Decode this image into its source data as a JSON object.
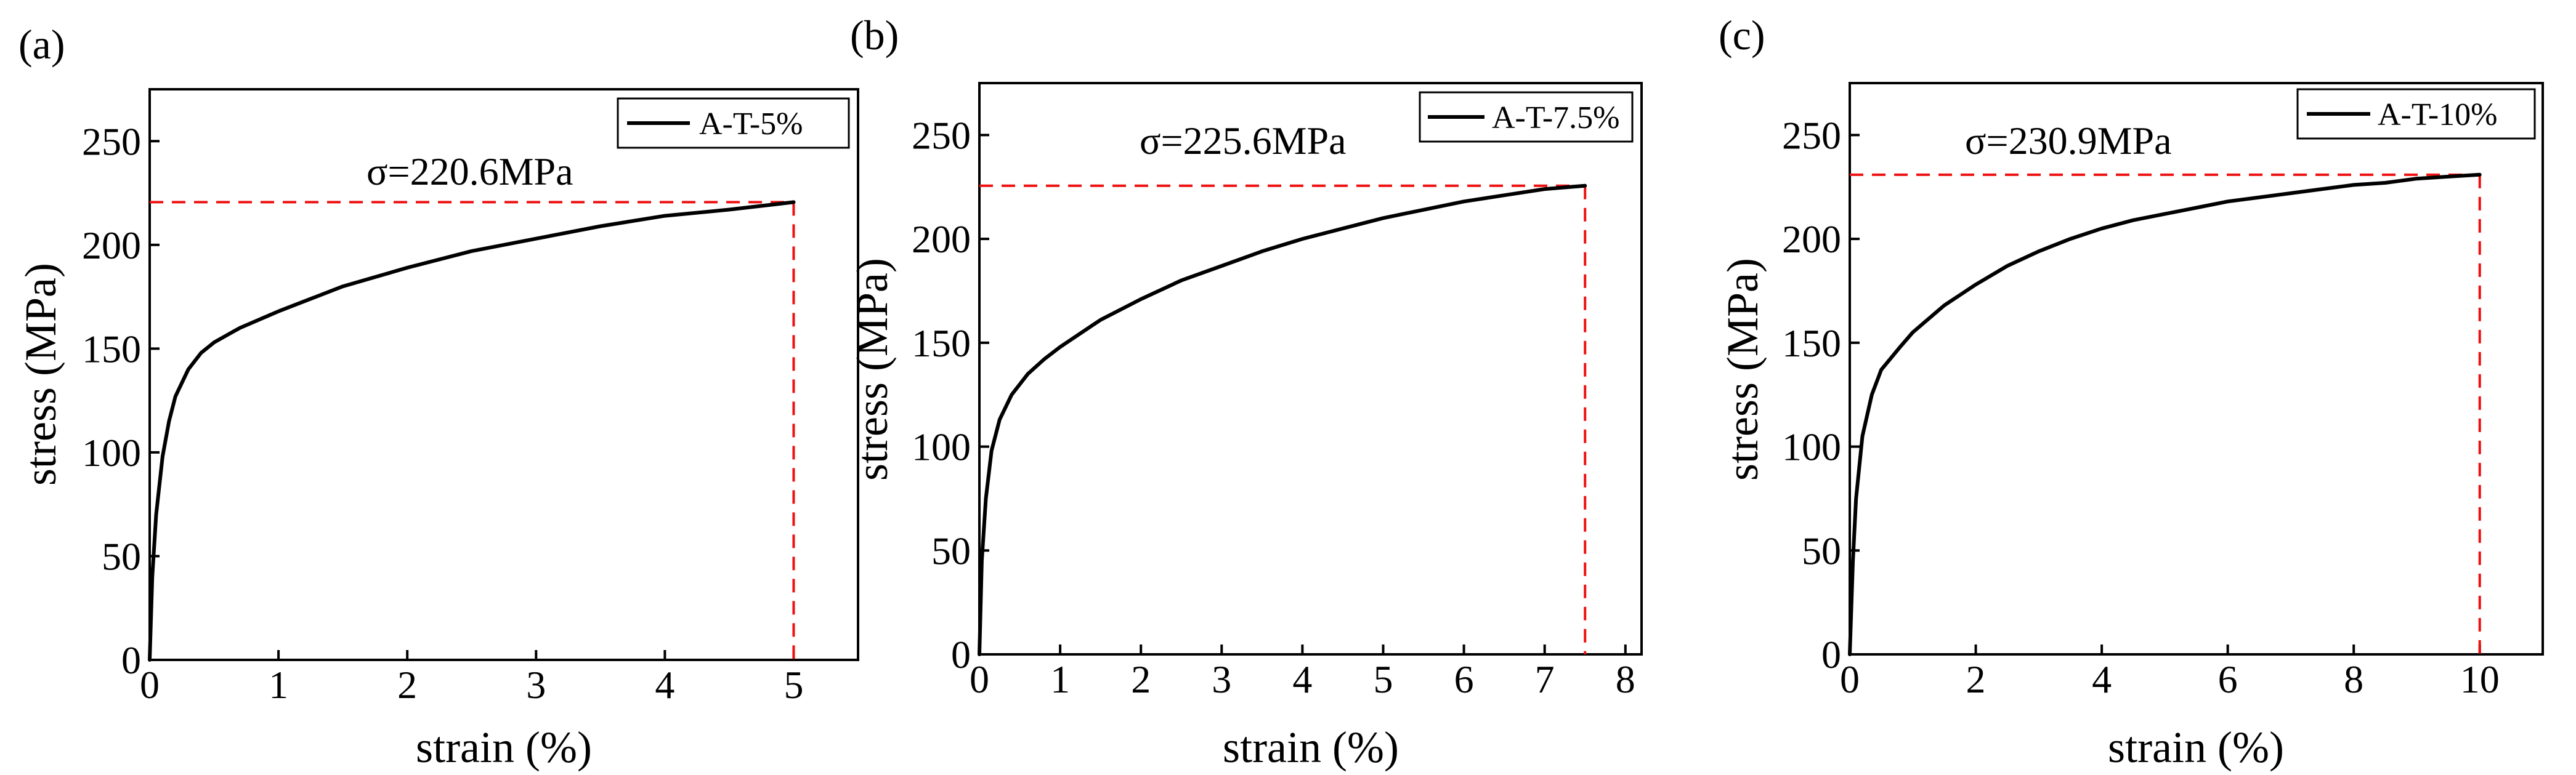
{
  "chart_data": [
    {
      "type": "line",
      "panel_label": "(a)",
      "xlabel": "strain (%)",
      "ylabel": "stress (MPa)",
      "xlim": [
        0,
        5.5
      ],
      "ylim": [
        0,
        275
      ],
      "xticks": [
        0,
        1,
        2,
        3,
        4,
        5
      ],
      "yticks": [
        0,
        50,
        100,
        150,
        200,
        250
      ],
      "grid": false,
      "legend_position": "top-right",
      "series": [
        {
          "name": "A-T-5%",
          "color": "#000000",
          "x": [
            0,
            0.02,
            0.05,
            0.1,
            0.15,
            0.2,
            0.3,
            0.4,
            0.5,
            0.7,
            1.0,
            1.5,
            2.0,
            2.5,
            3.0,
            3.5,
            4.0,
            4.5,
            5.0
          ],
          "y": [
            0,
            40,
            70,
            98,
            115,
            127,
            140,
            148,
            153,
            160,
            168,
            180,
            189,
            197,
            203,
            209,
            214,
            217,
            220.6
          ]
        }
      ],
      "reference_lines": {
        "color": "#ee1111",
        "x": 5.0,
        "y": 220.6
      },
      "annotation": "σ=220.6MPa"
    },
    {
      "type": "line",
      "panel_label": "(b)",
      "xlabel": "strain (%)",
      "ylabel": "stress (MPa)",
      "xlim": [
        0,
        8.2
      ],
      "ylim": [
        0,
        275
      ],
      "xticks": [
        0,
        1,
        2,
        3,
        4,
        5,
        6,
        7,
        8
      ],
      "yticks": [
        0,
        50,
        100,
        150,
        200,
        250
      ],
      "grid": false,
      "legend_position": "top-right",
      "series": [
        {
          "name": "A-T-7.5%",
          "color": "#000000",
          "x": [
            0,
            0.03,
            0.08,
            0.15,
            0.25,
            0.4,
            0.6,
            0.8,
            1.0,
            1.5,
            2.0,
            2.5,
            3.0,
            3.5,
            4.0,
            4.5,
            5.0,
            5.5,
            6.0,
            6.5,
            7.0,
            7.5
          ],
          "y": [
            0,
            45,
            75,
            98,
            113,
            125,
            135,
            142,
            148,
            161,
            171,
            180,
            187,
            194,
            200,
            205,
            210,
            214,
            218,
            221,
            224,
            225.6
          ]
        }
      ],
      "reference_lines": {
        "color": "#ee1111",
        "x": 7.5,
        "y": 225.6
      },
      "annotation": "σ=225.6MPa"
    },
    {
      "type": "line",
      "panel_label": "(c)",
      "xlabel": "strain (%)",
      "ylabel": "stress (MPa)",
      "xlim": [
        0,
        11
      ],
      "ylim": [
        0,
        275
      ],
      "xticks": [
        0,
        2,
        4,
        6,
        8,
        10
      ],
      "yticks": [
        0,
        50,
        100,
        150,
        200,
        250
      ],
      "grid": false,
      "legend_position": "top-right",
      "series": [
        {
          "name": "A-T-10%",
          "color": "#000000",
          "x": [
            0,
            0.05,
            0.1,
            0.2,
            0.35,
            0.5,
            0.8,
            1.0,
            1.5,
            2.0,
            2.5,
            3.0,
            3.5,
            4.0,
            4.5,
            5.0,
            5.5,
            6.0,
            6.5,
            7.0,
            7.5,
            8.0,
            8.5,
            9.0,
            9.5,
            10.0
          ],
          "y": [
            0,
            45,
            75,
            105,
            125,
            137,
            148,
            155,
            168,
            178,
            187,
            194,
            200,
            205,
            209,
            212,
            215,
            218,
            220,
            222,
            224,
            226,
            227,
            229,
            230,
            230.9
          ]
        }
      ],
      "reference_lines": {
        "color": "#ee1111",
        "x": 10.0,
        "y": 230.9
      },
      "annotation": "σ=230.9MPa"
    }
  ]
}
